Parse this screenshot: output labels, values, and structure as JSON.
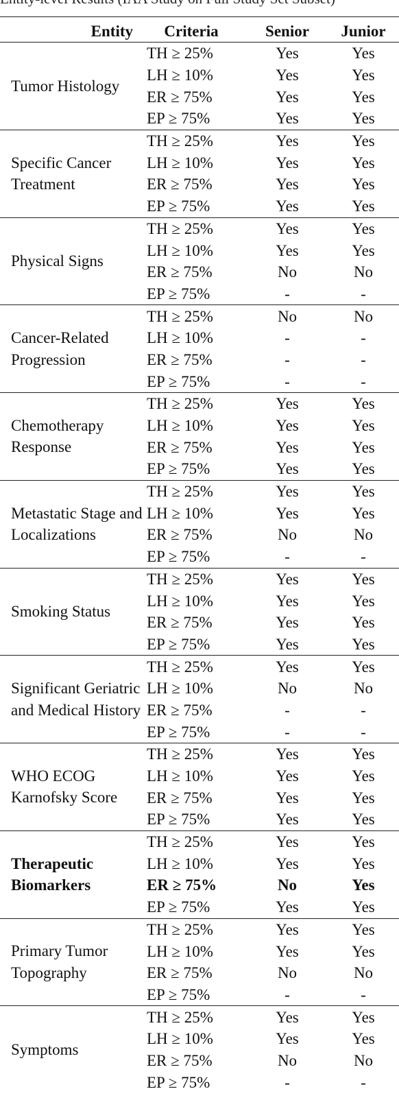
{
  "caption": "Entity-level Results (IAA Study on Full Study Set Subset)",
  "headers": {
    "entity": "Entity",
    "criteria": "Criteria",
    "senior": "Senior",
    "junior": "Junior"
  },
  "groups": [
    {
      "entity": "Tumor Histology",
      "rows": [
        {
          "criteria": "TH ≥ 25%",
          "senior": "Yes",
          "junior": "Yes"
        },
        {
          "criteria": "LH ≥ 10%",
          "senior": "Yes",
          "junior": "Yes"
        },
        {
          "criteria": "ER ≥ 75%",
          "senior": "Yes",
          "junior": "Yes"
        },
        {
          "criteria": "EP ≥ 75%",
          "senior": "Yes",
          "junior": "Yes"
        }
      ]
    },
    {
      "entity": "Specific Cancer Treatment",
      "rows": [
        {
          "criteria": "TH ≥ 25%",
          "senior": "Yes",
          "junior": "Yes"
        },
        {
          "criteria": "LH ≥ 10%",
          "senior": "Yes",
          "junior": "Yes"
        },
        {
          "criteria": "ER ≥ 75%",
          "senior": "Yes",
          "junior": "Yes"
        },
        {
          "criteria": "EP ≥ 75%",
          "senior": "Yes",
          "junior": "Yes"
        }
      ]
    },
    {
      "entity": "Physical Signs",
      "rows": [
        {
          "criteria": "TH ≥ 25%",
          "senior": "Yes",
          "junior": "Yes"
        },
        {
          "criteria": "LH ≥ 10%",
          "senior": "Yes",
          "junior": "Yes"
        },
        {
          "criteria": "ER ≥ 75%",
          "senior": "No",
          "junior": "No"
        },
        {
          "criteria": "EP ≥ 75%",
          "senior": "-",
          "junior": "-"
        }
      ]
    },
    {
      "entity": "Cancer-Related Progression",
      "rows": [
        {
          "criteria": "TH ≥ 25%",
          "senior": "No",
          "junior": "No"
        },
        {
          "criteria": "LH ≥ 10%",
          "senior": "-",
          "junior": "-"
        },
        {
          "criteria": "ER ≥ 75%",
          "senior": "-",
          "junior": "-"
        },
        {
          "criteria": "EP ≥ 75%",
          "senior": "-",
          "junior": "-"
        }
      ]
    },
    {
      "entity": "Chemotherapy Response",
      "rows": [
        {
          "criteria": "TH ≥ 25%",
          "senior": "Yes",
          "junior": "Yes"
        },
        {
          "criteria": "LH ≥ 10%",
          "senior": "Yes",
          "junior": "Yes"
        },
        {
          "criteria": "ER ≥ 75%",
          "senior": "Yes",
          "junior": "Yes"
        },
        {
          "criteria": "EP ≥ 75%",
          "senior": "Yes",
          "junior": "Yes"
        }
      ]
    },
    {
      "entity": "Metastatic Stage and Localizations",
      "rows": [
        {
          "criteria": "TH ≥ 25%",
          "senior": "Yes",
          "junior": "Yes"
        },
        {
          "criteria": "LH ≥ 10%",
          "senior": "Yes",
          "junior": "Yes"
        },
        {
          "criteria": "ER ≥ 75%",
          "senior": "No",
          "junior": "No"
        },
        {
          "criteria": "EP ≥ 75%",
          "senior": "-",
          "junior": "-"
        }
      ]
    },
    {
      "entity": "Smoking Status",
      "rows": [
        {
          "criteria": "TH ≥ 25%",
          "senior": "Yes",
          "junior": "Yes"
        },
        {
          "criteria": "LH ≥ 10%",
          "senior": "Yes",
          "junior": "Yes"
        },
        {
          "criteria": "ER ≥ 75%",
          "senior": "Yes",
          "junior": "Yes"
        },
        {
          "criteria": "EP ≥ 75%",
          "senior": "Yes",
          "junior": "Yes"
        }
      ]
    },
    {
      "entity": "Significant Geriatric and Medical History",
      "rows": [
        {
          "criteria": "TH ≥ 25%",
          "senior": "Yes",
          "junior": "Yes"
        },
        {
          "criteria": "LH ≥ 10%",
          "senior": "No",
          "junior": "No"
        },
        {
          "criteria": "ER ≥ 75%",
          "senior": "-",
          "junior": "-"
        },
        {
          "criteria": "EP ≥ 75%",
          "senior": "-",
          "junior": "-"
        }
      ]
    },
    {
      "entity": "WHO ECOG Karnofsky Score",
      "rows": [
        {
          "criteria": "TH ≥ 25%",
          "senior": "Yes",
          "junior": "Yes"
        },
        {
          "criteria": "LH ≥ 10%",
          "senior": "Yes",
          "junior": "Yes"
        },
        {
          "criteria": "ER ≥ 75%",
          "senior": "Yes",
          "junior": "Yes"
        },
        {
          "criteria": "EP ≥ 75%",
          "senior": "Yes",
          "junior": "Yes"
        }
      ]
    },
    {
      "entity": "Therapeutic Biomarkers",
      "bold": true,
      "rows": [
        {
          "criteria": "TH ≥ 25%",
          "senior": "Yes",
          "junior": "Yes"
        },
        {
          "criteria": "LH ≥ 10%",
          "senior": "Yes",
          "junior": "Yes"
        },
        {
          "criteria": "ER ≥ 75%",
          "senior": "No",
          "junior": "Yes",
          "bold": true
        },
        {
          "criteria": "EP ≥ 75%",
          "senior": "Yes",
          "junior": "Yes"
        }
      ]
    },
    {
      "entity": "Primary Tumor Topography",
      "rows": [
        {
          "criteria": "TH ≥ 25%",
          "senior": "Yes",
          "junior": "Yes"
        },
        {
          "criteria": "LH ≥ 10%",
          "senior": "Yes",
          "junior": "Yes"
        },
        {
          "criteria": "ER ≥ 75%",
          "senior": "No",
          "junior": "No"
        },
        {
          "criteria": "EP ≥ 75%",
          "senior": "-",
          "junior": "-"
        }
      ]
    },
    {
      "entity": "Symptoms",
      "rows": [
        {
          "criteria": "TH ≥ 25%",
          "senior": "Yes",
          "junior": "Yes"
        },
        {
          "criteria": "LH ≥ 10%",
          "senior": "Yes",
          "junior": "Yes"
        },
        {
          "criteria": "ER ≥ 75%",
          "senior": "No",
          "junior": "No"
        },
        {
          "criteria": "EP ≥ 75%",
          "senior": "-",
          "junior": "-"
        }
      ]
    }
  ]
}
